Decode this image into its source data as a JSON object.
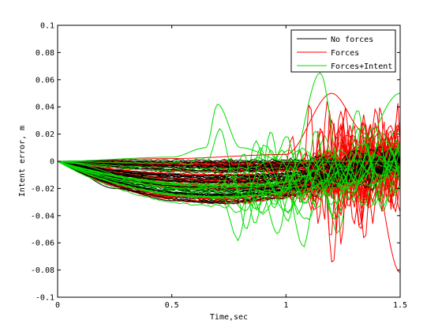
{
  "chart_data": {
    "type": "line",
    "title": "",
    "xlabel": "Time,sec",
    "ylabel": "Intent error, m",
    "xlim": [
      0,
      1.5
    ],
    "ylim": [
      -0.1,
      0.1
    ],
    "x_ticks": [
      0,
      0.5,
      1,
      1.5
    ],
    "x_tick_labels": [
      "0",
      "0.5",
      "1",
      "1.5"
    ],
    "y_ticks": [
      -0.1,
      -0.08,
      -0.06,
      -0.04,
      -0.02,
      0,
      0.02,
      0.04,
      0.06,
      0.08,
      0.1
    ],
    "y_tick_labels": [
      "-0.1",
      "-0.08",
      "-0.06",
      "-0.04",
      "-0.02",
      "0",
      "0.02",
      "0.04",
      "0.06",
      "0.08",
      "0.1"
    ],
    "grid": false,
    "legend_position": "top-right",
    "series": [
      {
        "name": "No forces",
        "color": "#000000",
        "trace_count": 40,
        "lines": [
          {
            "x": [
              0,
              0.25,
              0.5,
              0.75,
              1.0,
              1.25,
              1.5
            ],
            "y": [
              0,
              -0.02,
              -0.029,
              -0.031,
              -0.022,
              -0.012,
              -0.005
            ]
          },
          {
            "x": [
              0,
              0.25,
              0.5,
              0.75,
              1.0,
              1.25,
              1.5
            ],
            "y": [
              0,
              -0.016,
              -0.024,
              -0.025,
              -0.018,
              -0.01,
              -0.004
            ]
          },
          {
            "x": [
              0,
              0.25,
              0.5,
              0.75,
              1.0,
              1.25,
              1.5
            ],
            "y": [
              0,
              -0.012,
              -0.018,
              -0.019,
              -0.014,
              -0.008,
              -0.003
            ]
          }
        ]
      },
      {
        "name": "Forces",
        "color": "#ff0000",
        "trace_count": 40,
        "lines": [
          {
            "x": [
              0,
              0.25,
              0.5,
              0.75,
              1.0,
              1.25,
              1.5
            ],
            "y": [
              0,
              -0.018,
              -0.026,
              -0.028,
              -0.02,
              -0.01,
              -0.004
            ]
          },
          {
            "x": [
              0,
              0.5,
              1.0,
              1.2,
              1.35,
              1.5
            ],
            "y": [
              0,
              0.002,
              0.005,
              0.05,
              0.02,
              -0.082
            ]
          }
        ]
      },
      {
        "name": "Forces+Intent",
        "color": "#00dd00",
        "trace_count": 30,
        "lines": [
          {
            "x": [
              0,
              0.5,
              0.65,
              0.7,
              0.8,
              1.0,
              1.5
            ],
            "y": [
              0,
              0.003,
              0.01,
              0.042,
              0.01,
              0.0,
              0.0
            ]
          },
          {
            "x": [
              0,
              0.5,
              1.0,
              1.15,
              1.25,
              1.5
            ],
            "y": [
              0,
              -0.02,
              -0.018,
              0.065,
              -0.02,
              0.05
            ]
          }
        ]
      }
    ]
  }
}
